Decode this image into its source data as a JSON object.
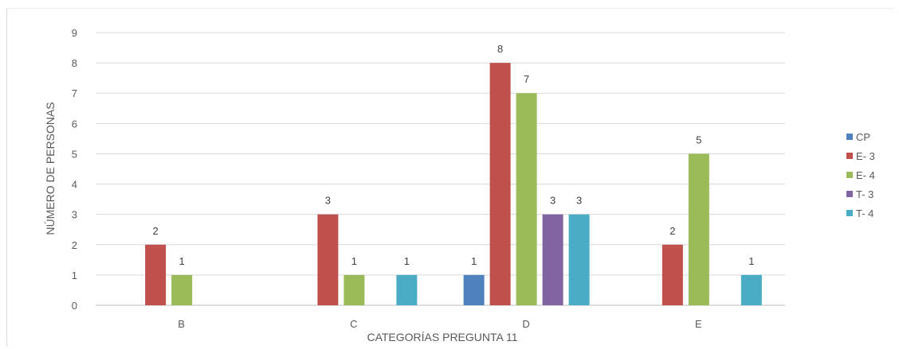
{
  "chart_data": {
    "type": "bar",
    "title": "",
    "xlabel": "CATEGORÍAS PREGUNTA 11",
    "ylabel": "NÚMERO DE PERSONAS",
    "categories": [
      "B",
      "C",
      "D",
      "E"
    ],
    "ylim": [
      0,
      9
    ],
    "yticks": [
      0,
      1,
      2,
      3,
      4,
      5,
      6,
      7,
      8,
      9
    ],
    "grid": true,
    "legend_position": "right",
    "series": [
      {
        "name": "CP",
        "color": "#4F81BD",
        "values": [
          0,
          0,
          1,
          0
        ]
      },
      {
        "name": "E- 3",
        "color": "#C0504D",
        "values": [
          2,
          3,
          8,
          2
        ]
      },
      {
        "name": "E- 4",
        "color": "#9BBB59",
        "values": [
          1,
          1,
          7,
          5
        ]
      },
      {
        "name": "T- 3",
        "color": "#8064A2",
        "values": [
          0,
          0,
          3,
          0
        ]
      },
      {
        "name": "T- 4",
        "color": "#4BACC6",
        "values": [
          0,
          1,
          3,
          1
        ]
      }
    ]
  }
}
